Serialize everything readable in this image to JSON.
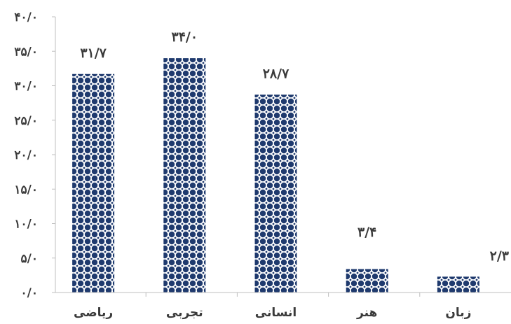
{
  "chart_data": {
    "type": "bar",
    "title": "",
    "xlabel": "",
    "ylabel": "",
    "categories": [
      "ریاضی",
      "تجربی",
      "انسانی",
      "هنر",
      "زبان"
    ],
    "values": [
      31.7,
      34.0,
      28.7,
      3.4,
      2.3
    ],
    "data_labels": [
      "۳۱/۷",
      "۳۴/۰",
      "۲۸/۷",
      "۳/۴",
      "۲/۳"
    ],
    "ylim": [
      0,
      40
    ],
    "yticks": [
      0,
      5,
      10,
      15,
      20,
      25,
      30,
      35,
      40
    ],
    "ytick_labels": [
      "۰/۰",
      "۵/۰",
      "۱۰/۰",
      "۱۵/۰",
      "۲۰/۰",
      "۲۵/۰",
      "۳۰/۰",
      "۳۵/۰",
      "۴۰/۰"
    ],
    "grid": false,
    "legend": "none",
    "bar_fill": "dotted-pattern",
    "colors": {
      "bar": "#1f3a6e",
      "bar_background": "#ffffff",
      "text": "#3a3a3a",
      "axis": "#bfbfbf"
    }
  }
}
